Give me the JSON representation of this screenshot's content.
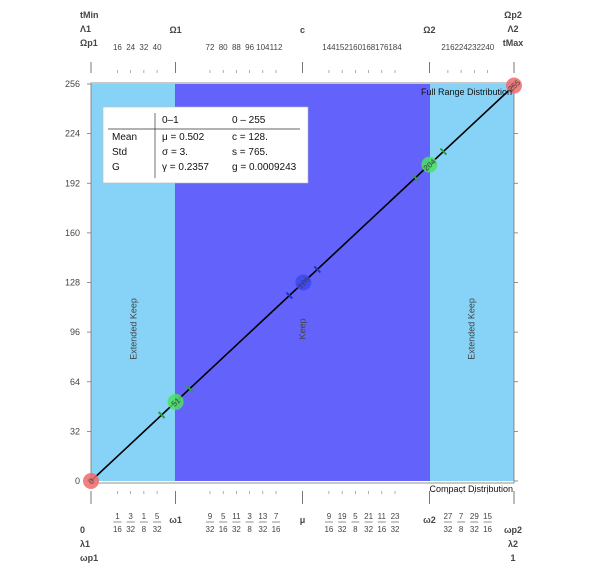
{
  "chart_data": {
    "type": "line",
    "ylim": [
      0,
      256
    ],
    "xlim": [
      0,
      1
    ],
    "y_ticks": [
      0,
      32,
      64,
      96,
      128,
      160,
      192,
      224,
      256
    ],
    "series": [
      {
        "x": [
          0,
          1
        ],
        "y": [
          0,
          255
        ]
      }
    ],
    "regions": [
      {
        "label": "Extended Keep",
        "x": [
          0,
          0.2
        ],
        "color": "#87d3f8"
      },
      {
        "label": "Keep",
        "x": [
          0.2,
          0.8
        ],
        "color": "#6363fb"
      },
      {
        "label": "Extended Keep",
        "x": [
          0.8,
          1
        ],
        "color": "#87d3f8"
      }
    ],
    "markers": [
      {
        "x": 0,
        "y": 0,
        "label": "0",
        "color": "#f06a6a"
      },
      {
        "x": 0.2,
        "y": 51,
        "label": "51",
        "color": "#4be060"
      },
      {
        "x": 0.502,
        "y": 128,
        "label": "128",
        "color": "#3a47ee"
      },
      {
        "x": 0.8,
        "y": 204,
        "label": "204",
        "color": "#4be060"
      },
      {
        "x": 1,
        "y": 255,
        "label": "255",
        "color": "#f06a6a"
      }
    ],
    "corner_labels": {
      "top_right": "Full Range Distribution",
      "bottom_right": "Compact Distribution"
    },
    "top_axis": {
      "left_stack": [
        "tMin",
        "Λ1",
        "Ωp1"
      ],
      "right_stack": [
        "Ωp2",
        "Λ2",
        "tMax"
      ],
      "labels": [
        {
          "x": 0.2,
          "text": "Ω1"
        },
        {
          "x": 0.5,
          "text": "c"
        },
        {
          "x": 0.8,
          "text": "Ω2"
        }
      ],
      "minor_labels": [
        {
          "x": 0.0625,
          "text": "16"
        },
        {
          "x": 0.09375,
          "text": "24"
        },
        {
          "x": 0.125,
          "text": "32"
        },
        {
          "x": 0.15625,
          "text": "40"
        },
        {
          "x": 0.28125,
          "text": "72"
        },
        {
          "x": 0.3125,
          "text": "80"
        },
        {
          "x": 0.34375,
          "text": "88"
        },
        {
          "x": 0.375,
          "text": "96"
        },
        {
          "x": 0.40625,
          "text": "104"
        },
        {
          "x": 0.4375,
          "text": "112"
        },
        {
          "x": 0.5625,
          "text": "144"
        },
        {
          "x": 0.59375,
          "text": "152"
        },
        {
          "x": 0.625,
          "text": "160"
        },
        {
          "x": 0.65625,
          "text": "168"
        },
        {
          "x": 0.6875,
          "text": "176"
        },
        {
          "x": 0.71875,
          "text": "184"
        },
        {
          "x": 0.84375,
          "text": "216"
        },
        {
          "x": 0.875,
          "text": "224"
        },
        {
          "x": 0.90625,
          "text": "232"
        },
        {
          "x": 0.9375,
          "text": "240"
        }
      ]
    },
    "bottom_axis": {
      "left_stack": [
        "0",
        "λ1",
        "ωp1"
      ],
      "right_stack": [
        "ωp2",
        "λ2",
        "1"
      ],
      "labels": [
        {
          "x": 0.2,
          "text": "ω1"
        },
        {
          "x": 0.5,
          "text": "μ"
        },
        {
          "x": 0.8,
          "text": "ω2"
        }
      ],
      "fractions": [
        {
          "x": 0.0625,
          "num": "1",
          "den": "16"
        },
        {
          "x": 0.09375,
          "num": "3",
          "den": "32"
        },
        {
          "x": 0.125,
          "num": "1",
          "den": "8"
        },
        {
          "x": 0.15625,
          "num": "5",
          "den": "32"
        },
        {
          "x": 0.28125,
          "num": "9",
          "den": "32"
        },
        {
          "x": 0.3125,
          "num": "5",
          "den": "16"
        },
        {
          "x": 0.34375,
          "num": "11",
          "den": "32"
        },
        {
          "x": 0.375,
          "num": "3",
          "den": "8"
        },
        {
          "x": 0.40625,
          "num": "13",
          "den": "32"
        },
        {
          "x": 0.4375,
          "num": "7",
          "den": "16"
        },
        {
          "x": 0.5625,
          "num": "9",
          "den": "16"
        },
        {
          "x": 0.59375,
          "num": "19",
          "den": "32"
        },
        {
          "x": 0.625,
          "num": "5",
          "den": "8"
        },
        {
          "x": 0.65625,
          "num": "21",
          "den": "32"
        },
        {
          "x": 0.6875,
          "num": "11",
          "den": "16"
        },
        {
          "x": 0.71875,
          "num": "23",
          "den": "32"
        },
        {
          "x": 0.84375,
          "num": "27",
          "den": "32"
        },
        {
          "x": 0.875,
          "num": "7",
          "den": "8"
        },
        {
          "x": 0.90625,
          "num": "29",
          "den": "32"
        },
        {
          "x": 0.9375,
          "num": "15",
          "den": "16"
        }
      ]
    },
    "stats_table": {
      "header": [
        "",
        "0–1",
        "0 – 255"
      ],
      "rows": [
        [
          "Mean",
          "μ = 0.502",
          "c = 128."
        ],
        [
          "Std",
          "σ = 3.",
          "s = 765."
        ],
        [
          "G",
          "γ = 0.2357",
          "g = 0.0009243"
        ]
      ]
    }
  }
}
